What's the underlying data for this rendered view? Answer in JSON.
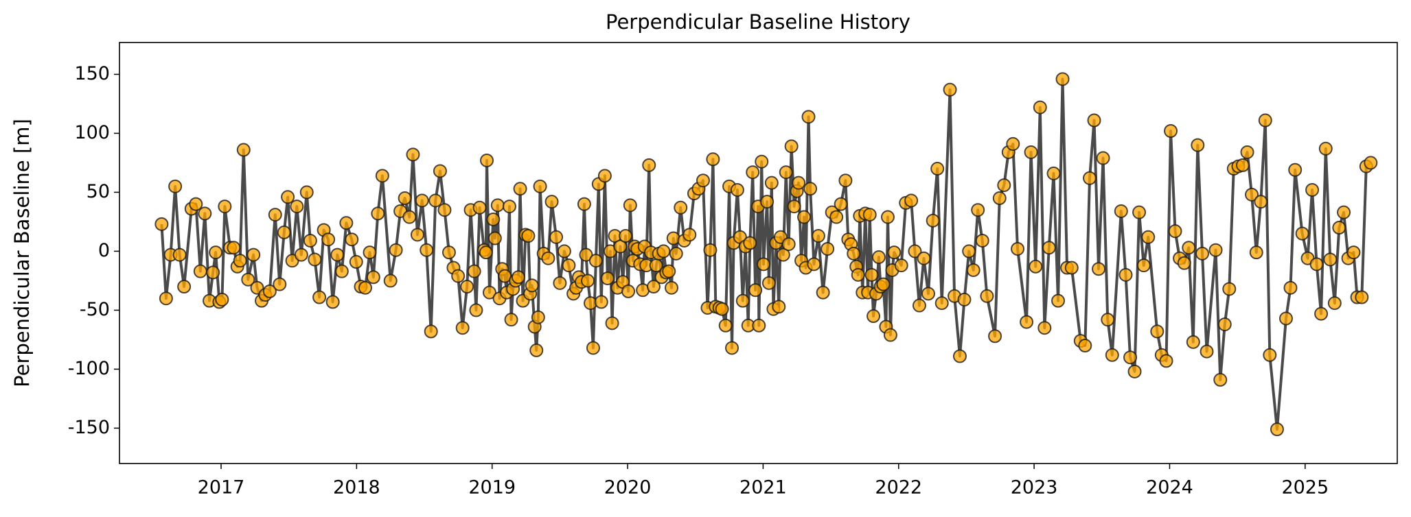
{
  "chart_data": {
    "type": "line",
    "title": "Perpendicular Baseline History",
    "ylabel": "Perpendicular Baseline [m]",
    "color": "#ffa500",
    "line_color": "#404040",
    "xlim": [
      2016.25,
      2025.68
    ],
    "xticks": [
      2017,
      2018,
      2019,
      2020,
      2021,
      2022,
      2023,
      2024,
      2025
    ],
    "ylim": [
      -180,
      177
    ],
    "yticks": [
      -150,
      -100,
      -50,
      0,
      50,
      100,
      150
    ],
    "x": [
      2016.561,
      2016.594,
      2016.628,
      2016.661,
      2016.694,
      2016.727,
      2016.781,
      2016.814,
      2016.847,
      2016.88,
      2016.914,
      2016.94,
      2016.96,
      2016.987,
      2017.007,
      2017.027,
      2017.066,
      2017.093,
      2017.12,
      2017.14,
      2017.166,
      2017.199,
      2017.239,
      2017.266,
      2017.299,
      2017.326,
      2017.359,
      2017.399,
      2017.432,
      2017.465,
      2017.492,
      2017.525,
      2017.559,
      2017.592,
      2017.632,
      2017.658,
      2017.691,
      2017.725,
      2017.758,
      2017.791,
      2017.824,
      2017.858,
      2017.891,
      2017.924,
      2017.964,
      2017.997,
      2018.031,
      2018.064,
      2018.097,
      2018.124,
      2018.157,
      2018.19,
      2018.25,
      2018.29,
      2018.323,
      2018.356,
      2018.39,
      2018.416,
      2018.449,
      2018.483,
      2018.516,
      2018.549,
      2018.582,
      2018.616,
      2018.649,
      2018.682,
      2018.715,
      2018.749,
      2018.782,
      2018.815,
      2018.842,
      2018.868,
      2018.882,
      2018.908,
      2018.941,
      2018.955,
      2018.961,
      2018.981,
      2019.008,
      2019.021,
      2019.041,
      2019.055,
      2019.074,
      2019.094,
      2019.108,
      2019.128,
      2019.141,
      2019.154,
      2019.174,
      2019.194,
      2019.207,
      2019.227,
      2019.247,
      2019.267,
      2019.281,
      2019.294,
      2019.314,
      2019.327,
      2019.34,
      2019.354,
      2019.38,
      2019.414,
      2019.44,
      2019.473,
      2019.5,
      2019.533,
      2019.566,
      2019.6,
      2019.62,
      2019.64,
      2019.66,
      2019.68,
      2019.693,
      2019.706,
      2019.726,
      2019.746,
      2019.766,
      2019.786,
      2019.806,
      2019.832,
      2019.852,
      2019.872,
      2019.886,
      2019.906,
      2019.926,
      2019.946,
      2019.965,
      2019.985,
      2020.005,
      2020.019,
      2020.039,
      2020.052,
      2020.072,
      2020.092,
      2020.112,
      2020.125,
      2020.138,
      2020.158,
      2020.172,
      2020.192,
      2020.211,
      2020.231,
      2020.251,
      2020.265,
      2020.285,
      2020.305,
      2020.324,
      2020.338,
      2020.358,
      2020.391,
      2020.418,
      2020.457,
      2020.491,
      2020.524,
      2020.557,
      2020.59,
      2020.61,
      2020.63,
      2020.65,
      2020.677,
      2020.697,
      2020.723,
      2020.75,
      2020.77,
      2020.783,
      2020.81,
      2020.83,
      2020.85,
      2020.87,
      2020.89,
      2020.903,
      2020.923,
      2020.943,
      2020.963,
      2020.969,
      2020.989,
      2021.003,
      2021.029,
      2021.043,
      2021.063,
      2021.076,
      2021.096,
      2021.116,
      2021.129,
      2021.149,
      2021.169,
      2021.189,
      2021.209,
      2021.229,
      2021.249,
      2021.262,
      2021.282,
      2021.302,
      2021.315,
      2021.335,
      2021.348,
      2021.375,
      2021.408,
      2021.442,
      2021.475,
      2021.508,
      2021.541,
      2021.574,
      2021.608,
      2021.628,
      2021.648,
      2021.668,
      2021.688,
      2021.701,
      2021.714,
      2021.734,
      2021.754,
      2021.774,
      2021.787,
      2021.801,
      2021.814,
      2021.834,
      2021.854,
      2021.867,
      2021.887,
      2021.907,
      2021.92,
      2021.94,
      2021.953,
      2021.967,
      2022.02,
      2022.053,
      2022.093,
      2022.12,
      2022.153,
      2022.186,
      2022.219,
      2022.253,
      2022.286,
      2022.319,
      2022.379,
      2022.412,
      2022.452,
      2022.485,
      2022.519,
      2022.552,
      2022.585,
      2022.618,
      2022.652,
      2022.711,
      2022.745,
      2022.778,
      2022.811,
      2022.844,
      2022.878,
      2022.944,
      2022.977,
      2023.011,
      2023.044,
      2023.077,
      2023.11,
      2023.144,
      2023.177,
      2023.21,
      2023.243,
      2023.277,
      2023.343,
      2023.376,
      2023.41,
      2023.443,
      2023.476,
      2023.509,
      2023.543,
      2023.576,
      2023.642,
      2023.676,
      2023.709,
      2023.742,
      2023.775,
      2023.809,
      2023.842,
      2023.908,
      2023.941,
      2023.975,
      2024.008,
      2024.041,
      2024.074,
      2024.108,
      2024.141,
      2024.174,
      2024.207,
      2024.241,
      2024.274,
      2024.34,
      2024.374,
      2024.407,
      2024.44,
      2024.473,
      2024.507,
      2024.54,
      2024.573,
      2024.606,
      2024.64,
      2024.673,
      2024.706,
      2024.739,
      2024.793,
      2024.859,
      2024.892,
      2024.926,
      2024.979,
      2025.019,
      2025.052,
      2025.085,
      2025.118,
      2025.152,
      2025.185,
      2025.218,
      2025.251,
      2025.285,
      2025.318,
      2025.358,
      2025.384,
      2025.418,
      2025.451,
      2025.484
    ],
    "values": [
      23,
      -40,
      -3,
      55,
      -3,
      -30,
      36,
      40,
      -17,
      32,
      -42,
      -18,
      -1,
      -43,
      -41,
      38,
      3,
      3,
      -13,
      -8,
      86,
      -24,
      -3,
      -31,
      -42,
      -37,
      -34,
      31,
      -28,
      16,
      46,
      -8,
      38,
      -3,
      50,
      9,
      -7,
      -39,
      18,
      10,
      -43,
      -3,
      -17,
      24,
      10,
      -9,
      -30,
      -31,
      -1,
      -22,
      32,
      64,
      -25,
      1,
      34,
      45,
      29,
      82,
      14,
      43,
      1,
      -68,
      43,
      68,
      35,
      -1,
      -14,
      -21,
      -65,
      -30,
      35,
      -17,
      -50,
      37,
      1,
      -1,
      77,
      -35,
      27,
      11,
      39,
      -40,
      -15,
      -21,
      -35,
      38,
      -58,
      -32,
      -25,
      -22,
      53,
      -42,
      14,
      13,
      -36,
      -29,
      -64,
      -84,
      -56,
      55,
      -2,
      -6,
      42,
      12,
      -27,
      0,
      -12,
      -36,
      -31,
      -22,
      -26,
      40,
      -3,
      -25,
      -44,
      -82,
      -8,
      57,
      -43,
      64,
      -23,
      0,
      -61,
      13,
      -31,
      4,
      -26,
      13,
      -34,
      39,
      -8,
      4,
      2,
      -11,
      -33,
      4,
      -12,
      73,
      -1,
      -30,
      -12,
      -2,
      -22,
      0,
      -18,
      -17,
      -31,
      11,
      -2,
      37,
      9,
      14,
      49,
      53,
      60,
      -48,
      1,
      78,
      -47,
      -48,
      -49,
      -63,
      55,
      -82,
      7,
      52,
      12,
      -42,
      4,
      -63,
      7,
      67,
      -33,
      38,
      -63,
      76,
      -11,
      42,
      -27,
      58,
      -49,
      7,
      -47,
      12,
      -3,
      67,
      6,
      89,
      38,
      51,
      58,
      -8,
      29,
      -14,
      114,
      53,
      -11,
      13,
      -35,
      2,
      33,
      29,
      40,
      60,
      10,
      6,
      -2,
      -13,
      -20,
      30,
      -35,
      32,
      -35,
      31,
      -20,
      -55,
      -36,
      -5,
      -30,
      -28,
      -64,
      29,
      -71,
      -16,
      -1,
      -12,
      41,
      43,
      0,
      -46,
      -6,
      -36,
      26,
      70,
      -44,
      137,
      -38,
      -89,
      -41,
      0,
      -16,
      35,
      9,
      -38,
      -72,
      45,
      56,
      84,
      91,
      2,
      -60,
      84,
      -13,
      122,
      -65,
      3,
      66,
      -42,
      146,
      -14,
      -14,
      -76,
      -80,
      62,
      111,
      -15,
      79,
      -58,
      -88,
      34,
      -20,
      -90,
      -102,
      33,
      -12,
      12,
      -68,
      -88,
      -93,
      102,
      17,
      -6,
      -10,
      3,
      -77,
      90,
      -2,
      -85,
      1,
      -109,
      -62,
      -32,
      70,
      72,
      73,
      84,
      48,
      -1,
      42,
      111,
      -88,
      -151,
      -57,
      -31,
      69,
      15,
      -6,
      52,
      -11,
      -53,
      87,
      -7,
      -44,
      20,
      33,
      -6,
      -1,
      -39,
      -39,
      72,
      75
    ]
  }
}
